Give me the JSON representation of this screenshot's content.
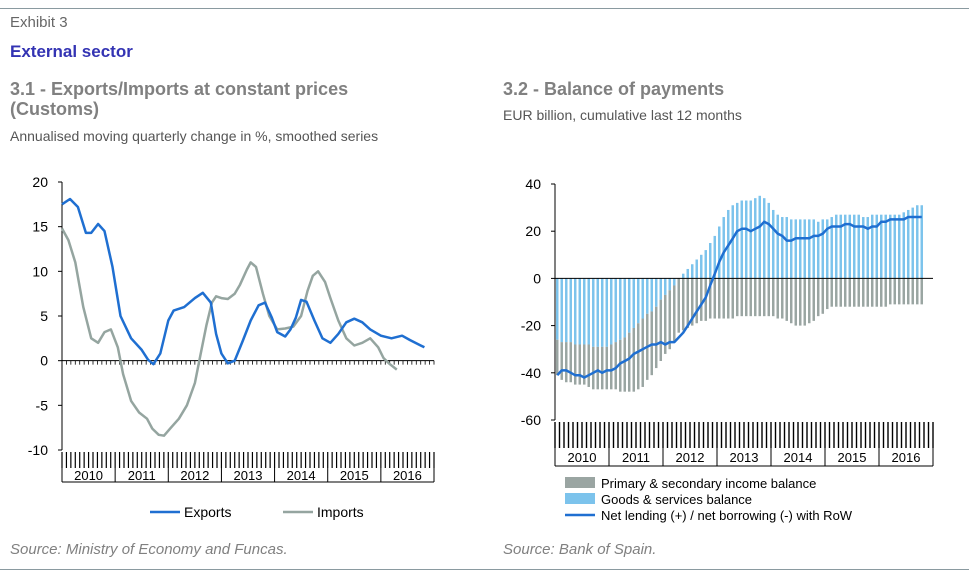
{
  "header": {
    "exhibit": "Exhibit 3",
    "title": "External sector"
  },
  "left_panel": {
    "title_line1": "3.1 - Exports/Imports at constant prices",
    "title_line2": "(Customs)",
    "subtitle": "Annualised moving quarterly change in %, smoothed series",
    "source": "Source: Ministry of Economy and Funcas."
  },
  "right_panel": {
    "title": "3.2 - Balance of payments",
    "subtitle": "EUR billion, cumulative last 12 months",
    "source": "Source: Bank of Spain."
  },
  "chart_data": [
    {
      "type": "line",
      "title": "3.1 - Exports/Imports at constant prices (Customs)",
      "subtitle": "Annualised moving quarterly change in %, smoothed series",
      "ylim": [
        -10,
        20
      ],
      "yticks": [
        -10,
        -5,
        0,
        5,
        10,
        15,
        20
      ],
      "xlim": [
        2010.0,
        2017.0
      ],
      "year_labels": [
        "2010",
        "2011",
        "2012",
        "2013",
        "2014",
        "2015",
        "2016"
      ],
      "legend_position": "bottom",
      "grid": false,
      "series": [
        {
          "name": "Exports",
          "color": "#1f6fd1",
          "points": [
            [
              2010.0,
              17.5
            ],
            [
              2010.15,
              18.1
            ],
            [
              2010.3,
              17.2
            ],
            [
              2010.45,
              14.3
            ],
            [
              2010.55,
              14.3
            ],
            [
              2010.68,
              15.3
            ],
            [
              2010.8,
              14.5
            ],
            [
              2010.95,
              10.5
            ],
            [
              2011.1,
              5.0
            ],
            [
              2011.3,
              2.5
            ],
            [
              2011.5,
              1.2
            ],
            [
              2011.62,
              0.1
            ],
            [
              2011.72,
              -0.4
            ],
            [
              2011.85,
              0.8
            ],
            [
              2012.0,
              4.5
            ],
            [
              2012.1,
              5.6
            ],
            [
              2012.3,
              6.0
            ],
            [
              2012.5,
              7.0
            ],
            [
              2012.65,
              7.6
            ],
            [
              2012.8,
              6.5
            ],
            [
              2012.9,
              3.0
            ],
            [
              2013.0,
              0.8
            ],
            [
              2013.12,
              -0.3
            ],
            [
              2013.25,
              0.0
            ],
            [
              2013.4,
              2.2
            ],
            [
              2013.55,
              4.5
            ],
            [
              2013.7,
              6.2
            ],
            [
              2013.82,
              6.5
            ],
            [
              2013.95,
              4.8
            ],
            [
              2014.05,
              3.2
            ],
            [
              2014.2,
              2.7
            ],
            [
              2014.3,
              3.5
            ],
            [
              2014.4,
              4.8
            ],
            [
              2014.5,
              6.8
            ],
            [
              2014.6,
              6.6
            ],
            [
              2014.75,
              4.5
            ],
            [
              2014.9,
              2.5
            ],
            [
              2015.05,
              2.0
            ],
            [
              2015.2,
              3.0
            ],
            [
              2015.35,
              4.3
            ],
            [
              2015.5,
              4.7
            ],
            [
              2015.65,
              4.3
            ],
            [
              2015.8,
              3.5
            ],
            [
              2016.0,
              2.8
            ],
            [
              2016.2,
              2.5
            ],
            [
              2016.4,
              2.8
            ],
            [
              2016.55,
              2.3
            ],
            [
              2016.75,
              1.7
            ],
            [
              2016.82,
              1.5
            ]
          ]
        },
        {
          "name": "Imports",
          "color": "#95a5a0",
          "points": [
            [
              2010.0,
              14.8
            ],
            [
              2010.12,
              13.5
            ],
            [
              2010.25,
              11.0
            ],
            [
              2010.4,
              6.0
            ],
            [
              2010.55,
              2.5
            ],
            [
              2010.68,
              2.0
            ],
            [
              2010.8,
              3.2
            ],
            [
              2010.92,
              3.5
            ],
            [
              2011.05,
              1.5
            ],
            [
              2011.15,
              -1.5
            ],
            [
              2011.3,
              -4.5
            ],
            [
              2011.45,
              -5.8
            ],
            [
              2011.6,
              -6.5
            ],
            [
              2011.7,
              -7.6
            ],
            [
              2011.82,
              -8.3
            ],
            [
              2011.92,
              -8.4
            ],
            [
              2012.05,
              -7.5
            ],
            [
              2012.2,
              -6.5
            ],
            [
              2012.35,
              -5.0
            ],
            [
              2012.5,
              -2.5
            ],
            [
              2012.6,
              0.5
            ],
            [
              2012.72,
              4.0
            ],
            [
              2012.82,
              6.5
            ],
            [
              2012.9,
              7.2
            ],
            [
              2013.0,
              7.0
            ],
            [
              2013.12,
              6.9
            ],
            [
              2013.25,
              7.5
            ],
            [
              2013.35,
              8.5
            ],
            [
              2013.48,
              10.2
            ],
            [
              2013.55,
              11.0
            ],
            [
              2013.65,
              10.5
            ],
            [
              2013.78,
              7.5
            ],
            [
              2013.9,
              5.0
            ],
            [
              2014.05,
              3.5
            ],
            [
              2014.2,
              3.6
            ],
            [
              2014.35,
              3.8
            ],
            [
              2014.5,
              5.0
            ],
            [
              2014.62,
              7.8
            ],
            [
              2014.72,
              9.5
            ],
            [
              2014.82,
              10.0
            ],
            [
              2014.95,
              8.8
            ],
            [
              2015.05,
              7.0
            ],
            [
              2015.2,
              4.5
            ],
            [
              2015.35,
              2.5
            ],
            [
              2015.5,
              1.7
            ],
            [
              2015.65,
              2.0
            ],
            [
              2015.8,
              2.5
            ],
            [
              2015.95,
              1.5
            ],
            [
              2016.05,
              0.3
            ],
            [
              2016.15,
              -0.3
            ],
            [
              2016.3,
              -1.0
            ]
          ]
        }
      ]
    },
    {
      "type": "bar+line",
      "title": "3.2 - Balance of payments",
      "subtitle": "EUR billion, cumulative last 12 months",
      "ylim": [
        -60,
        40
      ],
      "yticks": [
        -60,
        -40,
        -20,
        0,
        20,
        40
      ],
      "xlim": [
        2010.0,
        2017.0
      ],
      "year_labels": [
        "2010",
        "2011",
        "2012",
        "2013",
        "2014",
        "2015",
        "2016"
      ],
      "legend_position": "bottom",
      "grid": false,
      "series": [
        {
          "name": "Primary & secondary income balance",
          "type": "bar",
          "color": "#9aa5a2",
          "key": "income"
        },
        {
          "name": "Goods & services balance",
          "type": "bar",
          "color": "#7cc3ec",
          "key": "goods"
        },
        {
          "name": "Net lending (+) / net borrowing (-) with RoW",
          "type": "line",
          "color": "#1f6fd1",
          "key": "net"
        }
      ],
      "months": [
        2010.0,
        2010.083,
        2010.167,
        2010.25,
        2010.333,
        2010.417,
        2010.5,
        2010.583,
        2010.667,
        2010.75,
        2010.833,
        2010.917,
        2011.0,
        2011.083,
        2011.167,
        2011.25,
        2011.333,
        2011.417,
        2011.5,
        2011.583,
        2011.667,
        2011.75,
        2011.833,
        2011.917,
        2012.0,
        2012.083,
        2012.167,
        2012.25,
        2012.333,
        2012.417,
        2012.5,
        2012.583,
        2012.667,
        2012.75,
        2012.833,
        2012.917,
        2013.0,
        2013.083,
        2013.167,
        2013.25,
        2013.333,
        2013.417,
        2013.5,
        2013.583,
        2013.667,
        2013.75,
        2013.833,
        2013.917,
        2014.0,
        2014.083,
        2014.167,
        2014.25,
        2014.333,
        2014.417,
        2014.5,
        2014.583,
        2014.667,
        2014.75,
        2014.833,
        2014.917,
        2015.0,
        2015.083,
        2015.167,
        2015.25,
        2015.333,
        2015.417,
        2015.5,
        2015.583,
        2015.667,
        2015.75,
        2015.833,
        2015.917,
        2016.0,
        2016.083,
        2016.167,
        2016.25,
        2016.333,
        2016.417,
        2016.5,
        2016.583,
        2016.667,
        2016.75
      ],
      "goods": [
        -26,
        -27,
        -27,
        -27,
        -28,
        -28,
        -28,
        -28,
        -29,
        -29,
        -29,
        -29,
        -28,
        -27,
        -26,
        -25,
        -23,
        -21,
        -19,
        -17,
        -15,
        -14,
        -12,
        -9,
        -7,
        -5,
        -3,
        0,
        2,
        4,
        6,
        8,
        10,
        12,
        15,
        18,
        22,
        26,
        29,
        31,
        32,
        33,
        33,
        33,
        34,
        35,
        34,
        32,
        29,
        27,
        26,
        26,
        25,
        25,
        25,
        25,
        25,
        25,
        24,
        25,
        25,
        26,
        27,
        27,
        27,
        27,
        27,
        27,
        26,
        26,
        27,
        27,
        27,
        27,
        27,
        27,
        27,
        28,
        29,
        30,
        31,
        31
      ],
      "income": [
        -15,
        -16,
        -17,
        -17,
        -17,
        -17,
        -17,
        -18,
        -18,
        -18,
        -18,
        -18,
        -19,
        -20,
        -22,
        -23,
        -25,
        -27,
        -28,
        -29,
        -28,
        -27,
        -26,
        -26,
        -25,
        -25,
        -24,
        -23,
        -22,
        -21,
        -20,
        -19,
        -18,
        -18,
        -17,
        -17,
        -17,
        -17,
        -17,
        -17,
        -16,
        -16,
        -16,
        -16,
        -16,
        -16,
        -16,
        -16,
        -16,
        -17,
        -17,
        -18,
        -19,
        -20,
        -20,
        -20,
        -19,
        -18,
        -16,
        -15,
        -13,
        -12,
        -12,
        -12,
        -12,
        -12,
        -12,
        -12,
        -12,
        -12,
        -12,
        -12,
        -12,
        -12,
        -11,
        -11,
        -11,
        -11,
        -11,
        -11,
        -11,
        -11
      ],
      "net": [
        -41,
        -39,
        -39,
        -40,
        -41,
        -41,
        -42,
        -41,
        -40,
        -39,
        -40,
        -39,
        -39,
        -38,
        -36,
        -35,
        -34,
        -32,
        -31,
        -30,
        -29,
        -28,
        -28,
        -27,
        -28,
        -27,
        -27,
        -25,
        -23,
        -20,
        -17,
        -14,
        -11,
        -8,
        -3,
        2,
        7,
        11,
        14,
        17,
        20,
        21,
        21,
        20,
        21,
        22,
        24,
        23,
        21,
        19,
        18,
        16,
        16,
        17,
        17,
        17,
        17,
        18,
        18,
        19,
        21,
        22,
        22,
        22,
        23,
        23,
        22,
        22,
        22,
        21,
        22,
        22,
        24,
        24,
        25,
        25,
        25,
        25,
        26,
        26,
        26,
        26
      ]
    }
  ]
}
